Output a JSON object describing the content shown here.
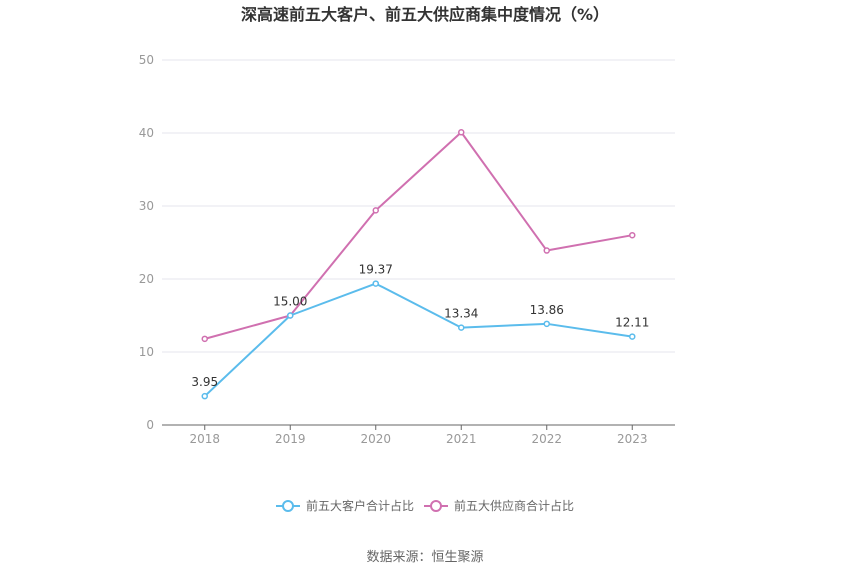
{
  "chart_data": {
    "type": "line",
    "title": "深高速前五大客户、前五大供应商集中度情况（%）",
    "categories": [
      "2018",
      "2019",
      "2020",
      "2021",
      "2022",
      "2023"
    ],
    "ylim": [
      0,
      50
    ],
    "yticks": [
      "0",
      "10",
      "20",
      "30",
      "40",
      "50"
    ],
    "grid": true,
    "legend_position": "bottom",
    "series": [
      {
        "name": "前五大客户合计占比",
        "color": "#5bbcec",
        "values": [
          3.95,
          15.0,
          19.37,
          13.34,
          13.86,
          12.11
        ],
        "labels": [
          "3.95",
          "15.00",
          "19.37",
          "13.34",
          "13.86",
          "12.11"
        ]
      },
      {
        "name": "前五大供应商合计占比",
        "color": "#d070b0",
        "values": [
          11.8,
          15.0,
          29.4,
          40.1,
          23.9,
          26.0
        ]
      }
    ]
  },
  "source": "数据来源：恒生聚源"
}
